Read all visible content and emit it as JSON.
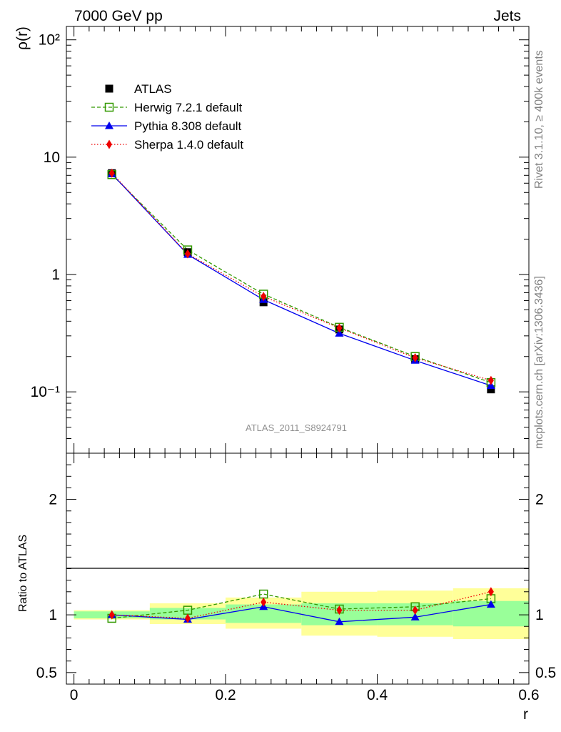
{
  "header": {
    "left": "7000 GeV pp",
    "right": "Jets"
  },
  "side_labels": {
    "top": "Rivet 3.1.10, ≥ 400k events",
    "bottom": "mcplots.cern.ch [arXiv:1306.3436]"
  },
  "watermark": "ATLAS_2011_S8924791",
  "chart_data": [
    {
      "type": "line",
      "panel": "main",
      "ylabel": "ρ(r)",
      "yscale": "log",
      "ylim": [
        0.03,
        130
      ],
      "xlim": [
        -0.01,
        0.6
      ],
      "ytick_labels": [
        "10⁻¹",
        "1",
        "10",
        "10²"
      ],
      "ytick_values": [
        0.1,
        1,
        10,
        100
      ],
      "x": [
        0.05,
        0.15,
        0.25,
        0.35,
        0.45,
        0.55
      ],
      "x_bin_edges": [
        0.0,
        0.1,
        0.2,
        0.3,
        0.4,
        0.5,
        0.6
      ],
      "series": [
        {
          "name": "ATLAS",
          "color": "#000000",
          "marker": "square-filled",
          "line": "none",
          "values": [
            7.3,
            1.55,
            0.58,
            0.34,
            0.19,
            0.105
          ]
        },
        {
          "name": "Herwig 7.2.1 default",
          "color": "#339900",
          "marker": "square-open",
          "line": "dashed",
          "values": [
            7.1,
            1.62,
            0.68,
            0.355,
            0.2,
            0.12
          ]
        },
        {
          "name": "Pythia 8.308 default",
          "color": "#0000ee",
          "marker": "triangle",
          "line": "solid",
          "values": [
            7.2,
            1.48,
            0.61,
            0.315,
            0.185,
            0.113
          ]
        },
        {
          "name": "Sherpa 1.4.0 default",
          "color": "#ee0000",
          "marker": "diamond",
          "line": "dotted",
          "values": [
            7.3,
            1.5,
            0.65,
            0.35,
            0.195,
            0.125
          ]
        }
      ]
    },
    {
      "type": "line",
      "panel": "ratio",
      "ylabel": "Ratio to ATLAS",
      "xlabel": "r",
      "ylim": [
        0.4,
        2.4
      ],
      "xlim": [
        -0.01,
        0.6
      ],
      "ytick_labels": [
        "0.5",
        "1",
        "2"
      ],
      "ytick_values": [
        0.5,
        1,
        2
      ],
      "xtick_labels": [
        "0",
        "0.2",
        "0.4",
        "0.6"
      ],
      "xtick_values": [
        0,
        0.2,
        0.4,
        0.6
      ],
      "x": [
        0.05,
        0.15,
        0.25,
        0.35,
        0.45,
        0.55
      ],
      "bands": {
        "green_low": [
          0.97,
          0.96,
          0.93,
          0.91,
          0.91,
          0.9
        ],
        "green_high": [
          1.03,
          1.06,
          1.09,
          1.1,
          1.1,
          1.12
        ],
        "yellow_low": [
          0.96,
          0.92,
          0.88,
          0.82,
          0.81,
          0.79
        ],
        "yellow_high": [
          1.04,
          1.1,
          1.15,
          1.2,
          1.21,
          1.23
        ]
      },
      "series": [
        {
          "name": "Herwig 7.2.1 default",
          "color": "#339900",
          "marker": "square-open",
          "line": "dashed",
          "values": [
            0.97,
            1.04,
            1.18,
            1.05,
            1.07,
            1.14
          ]
        },
        {
          "name": "Pythia 8.308 default",
          "color": "#0000ee",
          "marker": "triangle",
          "line": "solid",
          "values": [
            1.0,
            0.96,
            1.07,
            0.94,
            0.98,
            1.09
          ]
        },
        {
          "name": "Sherpa 1.4.0 default",
          "color": "#ee0000",
          "marker": "diamond",
          "line": "dotted",
          "values": [
            1.0,
            0.97,
            1.11,
            1.04,
            1.04,
            1.2
          ]
        }
      ]
    }
  ]
}
